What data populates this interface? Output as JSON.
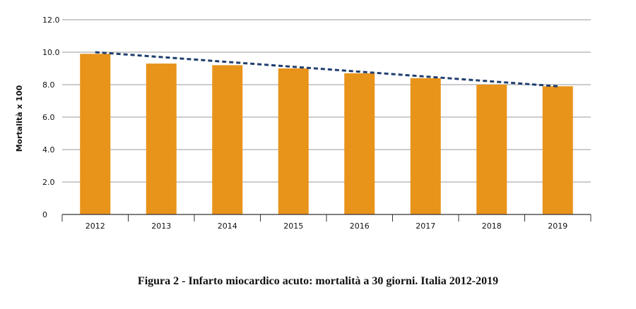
{
  "chart_data": {
    "type": "bar",
    "categories": [
      "2012",
      "2013",
      "2014",
      "2015",
      "2016",
      "2017",
      "2018",
      "2019"
    ],
    "values": [
      9.9,
      9.3,
      9.2,
      9.0,
      8.7,
      8.4,
      8.0,
      7.9
    ],
    "ylabel": "Mortalità x 100",
    "xlabel": "",
    "ylim": [
      0,
      12
    ],
    "yticks": [
      "0",
      "2.0",
      "4.0",
      "6.0",
      "8.0",
      "10.0",
      "12.0"
    ],
    "trendline": {
      "style": "dashed",
      "from": 10.0,
      "to": 7.9
    },
    "grid": true,
    "colors": {
      "bar": "#E8931A",
      "trend": "#1F3F6E",
      "grid": "#999999"
    }
  },
  "caption": "Figura 2 - Infarto miocardico acuto: mortalità a 30 giorni. Italia 2012-2019"
}
